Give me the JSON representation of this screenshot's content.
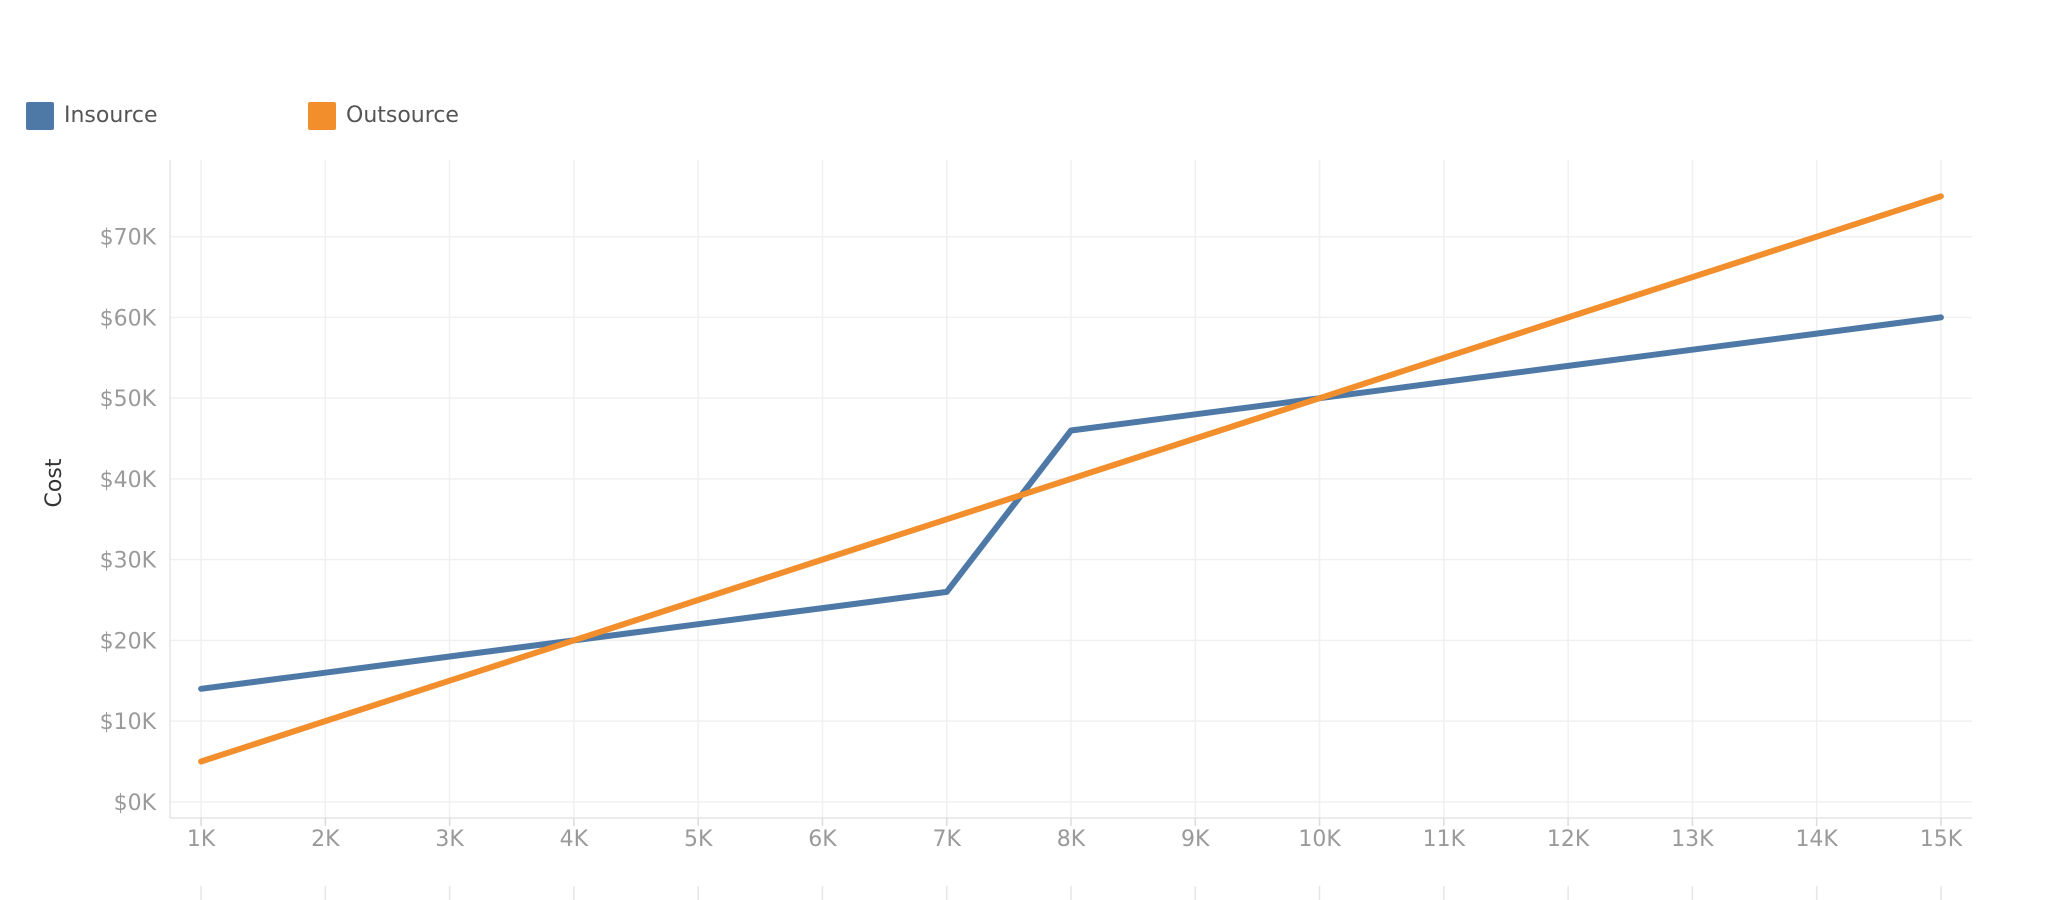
{
  "chart_data": {
    "type": "line",
    "title": "",
    "xlabel": "",
    "ylabel": "Cost",
    "x": [
      1000,
      2000,
      3000,
      4000,
      5000,
      6000,
      7000,
      8000,
      9000,
      10000,
      11000,
      12000,
      13000,
      14000,
      15000
    ],
    "x_tick_values": [
      1000,
      2000,
      3000,
      4000,
      5000,
      6000,
      7000,
      8000,
      9000,
      10000,
      11000,
      12000,
      13000,
      14000,
      15000
    ],
    "x_tick_labels": [
      "1K",
      "2K",
      "3K",
      "4K",
      "5K",
      "6K",
      "7K",
      "8K",
      "9K",
      "10K",
      "11K",
      "12K",
      "13K",
      "14K",
      "15K"
    ],
    "y_tick_values": [
      0,
      10000,
      20000,
      30000,
      40000,
      50000,
      60000,
      70000
    ],
    "y_tick_labels": [
      "$0K",
      "$10K",
      "$20K",
      "$30K",
      "$40K",
      "$50K",
      "$60K",
      "$70K"
    ],
    "xlim": [
      750,
      15250
    ],
    "ylim": [
      -2000,
      79500
    ],
    "grid": true,
    "legend_position": "top-left",
    "series": [
      {
        "name": "Insource",
        "color": "#4e79a7",
        "values": [
          14000,
          16000,
          18000,
          20000,
          22000,
          24000,
          26000,
          46000,
          48000,
          50000,
          52000,
          54000,
          56000,
          58000,
          60000
        ]
      },
      {
        "name": "Outsource",
        "color": "#f28e2b",
        "values": [
          5000,
          10000,
          15000,
          20000,
          25000,
          30000,
          35000,
          40000,
          45000,
          50000,
          55000,
          60000,
          65000,
          70000,
          75000
        ]
      }
    ]
  }
}
